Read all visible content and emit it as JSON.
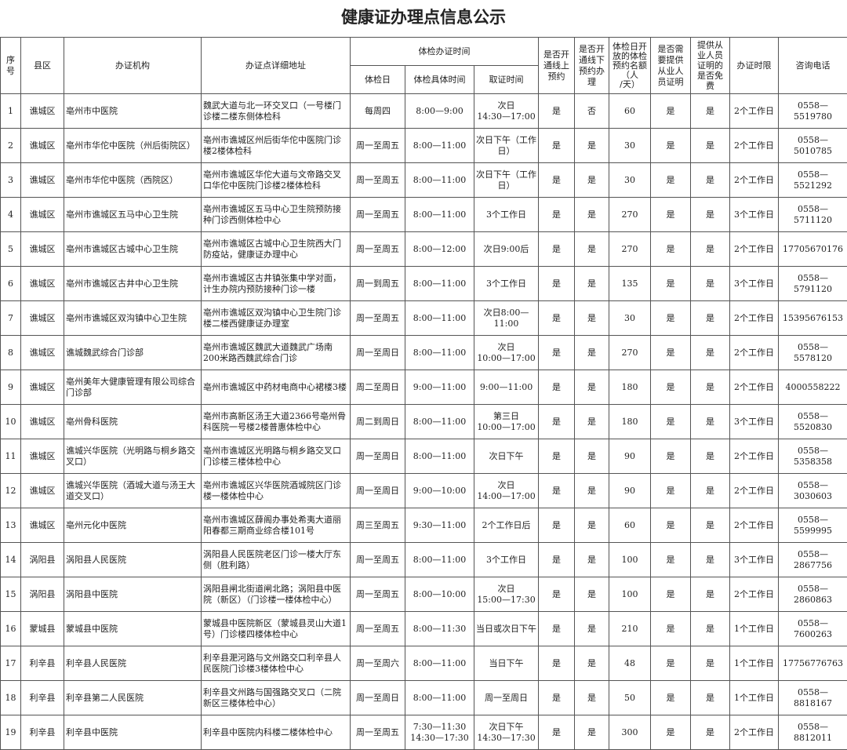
{
  "title": "健康证办理点信息公示",
  "headers": {
    "no": "序\n号",
    "county": "县区",
    "org": "办证机构",
    "address": "办证点详细地址",
    "time_group": "体检办证时间",
    "exam_day": "体检日",
    "exam_time": "体检具体时间",
    "pickup": "取证时间",
    "online": "是否开\n通线上\n预约",
    "offline": "是否开\n通线下\n预约办\n理",
    "quota": "体检日开\n放的体检\n预约名额\n（人\n/天）",
    "need_proof": "是否需\n要提供\n从业人\n员证明",
    "free": "提供从\n业人员\n证明的\n是否免\n费",
    "limit": "办证时限",
    "phone": "咨询电话"
  },
  "rows": [
    {
      "no": "1",
      "county": "谯城区",
      "org": "亳州市中医院",
      "address": "魏武大道与北一环交叉口（一号楼门诊楼二楼东侧体检科",
      "day": "每周四",
      "time": "8:00—9:00",
      "pickup": "次日\n14:30—17:00",
      "online": "是",
      "offline": "否",
      "quota": "60",
      "need_proof": "是",
      "free": "是",
      "limit": "2个工作日",
      "phone": "0558—5519780"
    },
    {
      "no": "2",
      "county": "谯城区",
      "org": "亳州市华佗中医院（州后街院区）",
      "address": "亳州市谯城区州后街华佗中医院门诊楼2楼体检科",
      "day": "周一至周五",
      "time": "8:00—11:00",
      "pickup": "次日下午（工作日）",
      "online": "是",
      "offline": "是",
      "quota": "30",
      "need_proof": "是",
      "free": "是",
      "limit": "2个工作日",
      "phone": "0558—5010785"
    },
    {
      "no": "3",
      "county": "谯城区",
      "org": "亳州市华佗中医院（西院区）",
      "address": "亳州市谯城区华佗大道与文帝路交叉口华佗中医院门诊楼2楼体检科",
      "day": "周一至周五",
      "time": "8:00—11:00",
      "pickup": "次日下午（工作日）",
      "online": "是",
      "offline": "是",
      "quota": "30",
      "need_proof": "是",
      "free": "是",
      "limit": "2个工作日",
      "phone": "0558—5521292"
    },
    {
      "no": "4",
      "county": "谯城区",
      "org": "亳州市谯城区五马中心卫生院",
      "address": "亳州市谯城区五马中心卫生院预防接种门诊西侧体检中心",
      "day": "周一至周五",
      "time": "8:00—11:00",
      "pickup": "3个工作日",
      "online": "是",
      "offline": "是",
      "quota": "270",
      "need_proof": "是",
      "free": "是",
      "limit": "3个工作日",
      "phone": "0558—5711120"
    },
    {
      "no": "5",
      "county": "谯城区",
      "org": "亳州市谯城区古城中心卫生院",
      "address": "亳州市谯城区古城中心卫生院西大门防疫站，健康证办理中心",
      "day": "周一至周五",
      "time": "8:00—12:00",
      "pickup": "次日9:00后",
      "online": "是",
      "offline": "是",
      "quota": "270",
      "need_proof": "是",
      "free": "是",
      "limit": "2个工作日",
      "phone": "17705670176"
    },
    {
      "no": "6",
      "county": "谯城区",
      "org": "亳州市谯城区古井中心卫生院",
      "address": "亳州市谯城区古井镇张集中学对面，计生办院内预防接种门诊一楼",
      "day": "周一到周五",
      "time": "8:00—11:00",
      "pickup": "3个工作日",
      "online": "是",
      "offline": "是",
      "quota": "135",
      "need_proof": "是",
      "free": "是",
      "limit": "3个工作日",
      "phone": "0558—5791120"
    },
    {
      "no": "7",
      "county": "谯城区",
      "org": "亳州市谯城区双沟镇中心卫生院",
      "address": "亳州市谯城区双沟镇中心卫生院门诊楼二楼西健康证办理室",
      "day": "周一至周五",
      "time": "8:00—11:00",
      "pickup": "次日8:00—11:00",
      "online": "是",
      "offline": "是",
      "quota": "30",
      "need_proof": "是",
      "free": "是",
      "limit": "2个工作日",
      "phone": "15395676153"
    },
    {
      "no": "8",
      "county": "谯城区",
      "org": "谯城魏武综合门诊部",
      "address": "亳州市谯城区魏武大道魏武广场南200米路西魏武综合门诊",
      "day": "周一至周日",
      "time": "8:00—11:00",
      "pickup": "次日\n10:00—17:00",
      "online": "是",
      "offline": "是",
      "quota": "270",
      "need_proof": "是",
      "free": "是",
      "limit": "2个工作日",
      "phone": "0558—5578120"
    },
    {
      "no": "9",
      "county": "谯城区",
      "org": "亳州美年大健康管理有限公司综合门诊部",
      "address": "亳州市谯城区中药材电商中心裙楼3楼",
      "day": "周二至周日",
      "time": "9:00—11:00",
      "pickup": "9:00—11:00",
      "online": "是",
      "offline": "是",
      "quota": "180",
      "need_proof": "是",
      "free": "是",
      "limit": "2个工作日",
      "phone": "4000558222"
    },
    {
      "no": "10",
      "county": "谯城区",
      "org": "亳州骨科医院",
      "address": "亳州市高新区汤王大道2366号亳州骨科医院一号楼2楼普惠体检中心",
      "day": "周二到周日",
      "time": "8:00—11:00",
      "pickup": "第三日\n10:00—17:00",
      "online": "是",
      "offline": "是",
      "quota": "180",
      "need_proof": "是",
      "free": "是",
      "limit": "3个工作日",
      "phone": "0558—5520830"
    },
    {
      "no": "11",
      "county": "谯城区",
      "org": "谯城兴华医院（光明路与桐乡路交叉口）",
      "address": "亳州市谯城区光明路与桐乡路交叉口门诊楼三楼体检中心",
      "day": "周一至周日",
      "time": "8:00—11:00",
      "pickup": "次日下午",
      "online": "是",
      "offline": "是",
      "quota": "90",
      "need_proof": "是",
      "free": "是",
      "limit": "2个工作日",
      "phone": "0558—5358358"
    },
    {
      "no": "12",
      "county": "谯城区",
      "org": "谯城兴华医院（酒城大道与汤王大道交叉口）",
      "address": "亳州市谯城区兴华医院酒城院区门诊楼一楼体检中心",
      "day": "周一至周日",
      "time": "9:00—10:00",
      "pickup": "次日\n14:00—17:00",
      "online": "是",
      "offline": "是",
      "quota": "90",
      "need_proof": "是",
      "free": "是",
      "limit": "2个工作日",
      "phone": "0558—3030603"
    },
    {
      "no": "13",
      "county": "谯城区",
      "org": "亳州元化中医院",
      "address": "亳州市谯城区薛阁办事处希夷大道丽阳春都三期商业综合楼101号",
      "day": "周三至周五",
      "time": "9:30—11:00",
      "pickup": "2个工作日后",
      "online": "是",
      "offline": "是",
      "quota": "60",
      "need_proof": "是",
      "free": "是",
      "limit": "2个工作日",
      "phone": "0558—5599995"
    },
    {
      "no": "14",
      "county": "涡阳县",
      "org": "涡阳县人民医院",
      "address": "涡阳县人民医院老区门诊一楼大厅东侧（胜利路）",
      "day": "周一至周五",
      "time": "8:00—11:00",
      "pickup": "3个工作日",
      "online": "是",
      "offline": "是",
      "quota": "100",
      "need_proof": "是",
      "free": "是",
      "limit": "3个工作日",
      "phone": "0558—2867756"
    },
    {
      "no": "15",
      "county": "涡阳县",
      "org": "涡阳县中医院",
      "address": "涡阳县闸北街道闸北路；涡阳县中医院（新区）（门诊楼一楼体检中心）",
      "day": "周一至周五",
      "time": "8:00—10:00",
      "pickup": "次日\n15:00—17:30",
      "online": "是",
      "offline": "是",
      "quota": "100",
      "need_proof": "是",
      "free": "是",
      "limit": "2个工作日",
      "phone": "0558—2860863"
    },
    {
      "no": "16",
      "county": "蒙城县",
      "org": "蒙城县中医院",
      "address": "蒙城县中医院新区（蒙城县灵山大道1号）门诊楼四楼体检中心",
      "day": "周一至周五",
      "time": "8:00—11:30",
      "pickup": "当日或次日下午",
      "online": "是",
      "offline": "是",
      "quota": "210",
      "need_proof": "是",
      "free": "是",
      "limit": "1个工作日",
      "phone": "0558—7600263"
    },
    {
      "no": "17",
      "county": "利辛县",
      "org": "利辛县人民医院",
      "address": "利辛县淝河路与文州路交口利辛县人民医院门诊楼3楼体检中心",
      "day": "周一至周六",
      "time": "8:00—11:00",
      "pickup": "当日下午",
      "online": "是",
      "offline": "是",
      "quota": "48",
      "need_proof": "是",
      "free": "是",
      "limit": "1个工作日",
      "phone": "17756776763"
    },
    {
      "no": "18",
      "county": "利辛县",
      "org": "利辛县第二人民医院",
      "address": "利辛县文州路与国强路交叉口（二院新区三楼体检中心）",
      "day": "周一至周日",
      "time": "8:00—11:00",
      "pickup": "周一至周日",
      "online": "是",
      "offline": "是",
      "quota": "50",
      "need_proof": "是",
      "free": "是",
      "limit": "1个工作日",
      "phone": "0558—8818167"
    },
    {
      "no": "19",
      "county": "利辛县",
      "org": "利辛县中医院",
      "address": "利辛县中医院内科楼二楼体检中心",
      "day": "周一至周五",
      "time": "7:30—11:30\n14:30—17:30",
      "pickup": "次日下午\n14:30—17:30",
      "online": "是",
      "offline": "是",
      "quota": "300",
      "need_proof": "是",
      "free": "是",
      "limit": "2个工作日",
      "phone": "0558—8812011"
    }
  ]
}
